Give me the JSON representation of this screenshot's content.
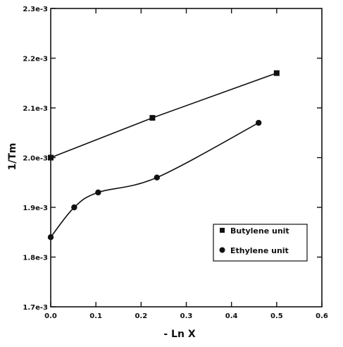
{
  "chart_data": {
    "type": "scatter",
    "title": "",
    "xlabel": "- Ln X",
    "ylabel": "1/Tm",
    "xlim": [
      0.0,
      0.6
    ],
    "ylim": [
      0.0017,
      0.0023
    ],
    "x_ticks": [
      "0.0",
      "0.1",
      "0.2",
      "0.3",
      "0.4",
      "0.5",
      "0.6"
    ],
    "y_ticks": [
      "1.7e-3",
      "1.8e-3",
      "1.9e-3",
      "2.0e-3",
      "2.1e-3",
      "2.2e-3",
      "2.3e-3"
    ],
    "grid": false,
    "legend_position": "lower-right",
    "series": [
      {
        "name": "Butylene unit",
        "marker": "square",
        "color": "#111111",
        "x": [
          0.0,
          0.225,
          0.5
        ],
        "y": [
          0.002,
          0.00208,
          0.00217
        ]
      },
      {
        "name": "Ethylene unit",
        "marker": "circle",
        "color": "#111111",
        "x": [
          0.0,
          0.052,
          0.105,
          0.235,
          0.46
        ],
        "y": [
          0.00184,
          0.0019,
          0.00193,
          0.00196,
          0.00207
        ]
      }
    ]
  }
}
